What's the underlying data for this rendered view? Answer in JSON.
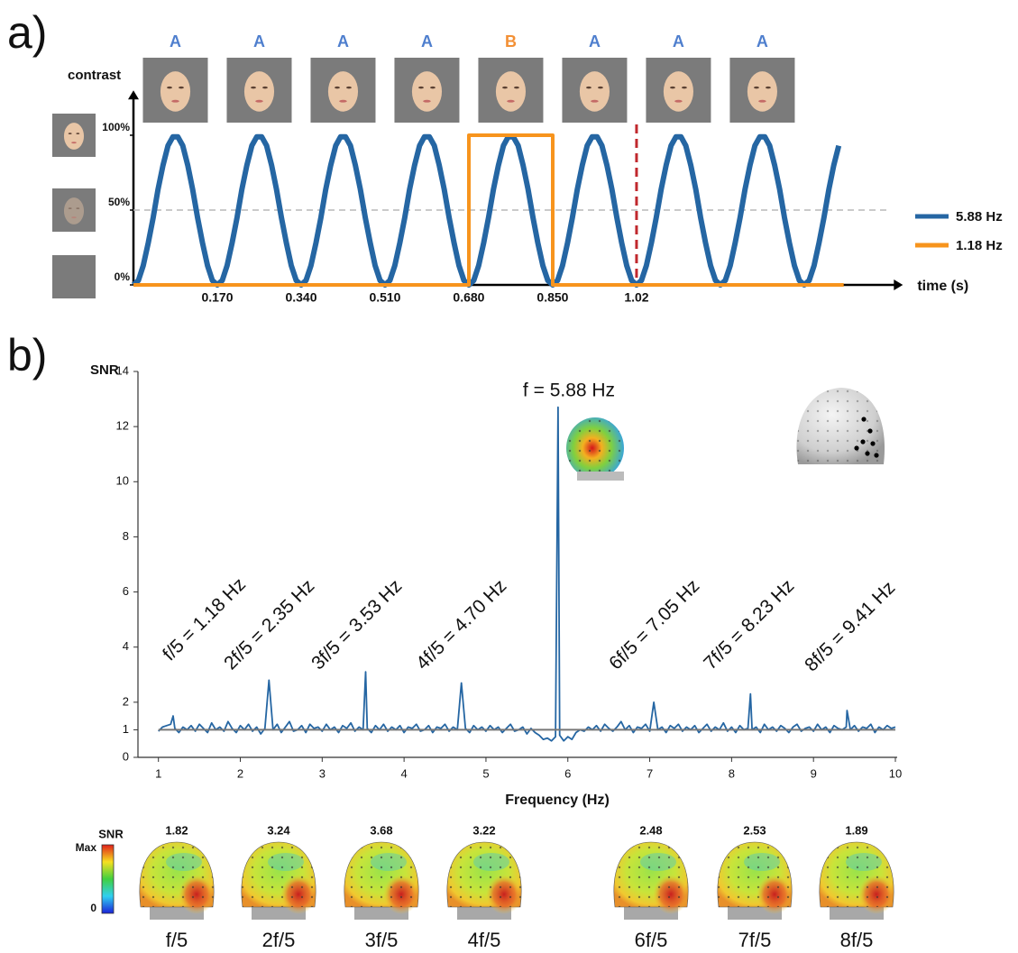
{
  "panel_labels": [
    "a)",
    "b)"
  ],
  "chart_data": [
    {
      "type": "line",
      "ylabel": "contrast",
      "xlabel": "time (s)",
      "stimuli": [
        "A",
        "A",
        "A",
        "A",
        "B",
        "A",
        "A",
        "A"
      ],
      "stimulus_colors": [
        "#4f7fce",
        "#4f7fce",
        "#4f7fce",
        "#4f7fce",
        "#f39035",
        "#4f7fce",
        "#4f7fce",
        "#4f7fce"
      ],
      "xlim": [
        0,
        1.56
      ],
      "ylim": [
        0,
        130
      ],
      "xticks": [
        {
          "value": 0.17,
          "label": "0.170"
        },
        {
          "value": 0.34,
          "label": "0.340"
        },
        {
          "value": 0.51,
          "label": "0.510"
        },
        {
          "value": 0.68,
          "label": "0.680"
        },
        {
          "value": 0.85,
          "label": "0.850"
        },
        1.02
      ],
      "yticks": [
        {
          "value": 0,
          "label": "0%"
        },
        {
          "value": 50,
          "label": "50%"
        },
        {
          "value": 100,
          "label": "100%"
        }
      ],
      "hline": 50,
      "vline": 1.02,
      "vline_color": "#c0282d",
      "legend": "right",
      "series": [
        {
          "name": "5.88 Hz",
          "color": "#2566a3",
          "x": [
            0,
            0.01,
            0.02,
            0.03,
            0.04,
            0.05,
            0.06,
            0.07,
            0.08,
            0.09,
            0.1,
            0.11,
            0.12,
            0.13,
            0.14,
            0.15,
            0.16,
            0.17,
            0.18,
            0.19,
            0.2,
            0.21,
            0.22,
            0.23,
            0.24,
            0.25,
            0.26,
            0.27,
            0.28,
            0.29,
            0.3,
            0.31,
            0.32,
            0.33,
            0.34,
            0.35,
            0.36,
            0.37,
            0.38,
            0.39,
            0.4,
            0.41,
            0.42,
            0.43,
            0.44,
            0.45,
            0.46,
            0.47,
            0.48,
            0.49,
            0.5,
            0.51,
            0.52,
            0.53,
            0.54,
            0.55,
            0.56,
            0.57,
            0.58,
            0.59,
            0.6,
            0.61,
            0.62,
            0.63,
            0.64,
            0.65,
            0.66,
            0.67,
            0.68,
            0.69,
            0.7,
            0.71,
            0.72,
            0.73,
            0.74,
            0.75,
            0.76,
            0.77,
            0.78,
            0.79,
            0.8,
            0.81,
            0.82,
            0.83,
            0.84,
            0.85,
            0.86,
            0.87,
            0.88,
            0.89,
            0.9,
            0.91,
            0.92,
            0.93,
            0.94,
            0.95,
            0.96,
            0.97,
            0.98,
            0.99,
            1,
            1.01,
            1.02,
            1.03,
            1.04,
            1.05,
            1.06,
            1.07,
            1.08,
            1.09,
            1.1,
            1.11,
            1.12,
            1.13,
            1.14,
            1.15,
            1.16,
            1.17,
            1.18,
            1.19,
            1.2,
            1.21,
            1.22,
            1.23,
            1.24,
            1.25,
            1.26,
            1.27,
            1.28,
            1.29,
            1.3,
            1.31,
            1.32,
            1.33,
            1.34,
            1.35,
            1.36,
            1.37,
            1.38,
            1.39,
            1.4,
            1.41,
            1.42,
            1.43
          ],
          "values": [
            0,
            3,
            13,
            28,
            45,
            64,
            80,
            93,
            99,
            99,
            93,
            80,
            64,
            45,
            28,
            13,
            3,
            0,
            3,
            13,
            28,
            45,
            64,
            80,
            93,
            99,
            99,
            93,
            80,
            64,
            45,
            28,
            13,
            3,
            0,
            3,
            13,
            28,
            45,
            64,
            80,
            93,
            99,
            99,
            93,
            80,
            64,
            45,
            28,
            13,
            3,
            0,
            3,
            13,
            28,
            45,
            64,
            80,
            93,
            99,
            99,
            93,
            80,
            64,
            45,
            28,
            13,
            3,
            0,
            3,
            13,
            28,
            45,
            64,
            80,
            93,
            99,
            99,
            93,
            80,
            64,
            45,
            28,
            13,
            3,
            0,
            3,
            13,
            28,
            45,
            64,
            80,
            93,
            99,
            99,
            93,
            80,
            64,
            45,
            28,
            13,
            3,
            0,
            3,
            13,
            28,
            45,
            64,
            80,
            93,
            99,
            99,
            93,
            80,
            64,
            45,
            28,
            13,
            3,
            0,
            3,
            13,
            28,
            45,
            64,
            80,
            93,
            99,
            99,
            93,
            80,
            64,
            45,
            28,
            13,
            3,
            0,
            3,
            13,
            28,
            45,
            64,
            80,
            93
          ]
        },
        {
          "name": "1.18 Hz",
          "color": "#f7941d",
          "x": [
            0,
            0.68,
            0.68,
            0.85,
            0.85,
            1.44
          ],
          "values": [
            0,
            0,
            100,
            100,
            0,
            0
          ]
        }
      ]
    },
    {
      "type": "line",
      "ylabel": "SNR",
      "xlabel": "Frequency (Hz)",
      "xlim": [
        0.75,
        10
      ],
      "ylim": [
        0,
        14
      ],
      "xticks": [
        1,
        2,
        3,
        4,
        5,
        6,
        7,
        8,
        9,
        10
      ],
      "yticks": [
        0,
        1,
        2,
        4,
        6,
        8,
        10,
        12,
        14
      ],
      "hline": 1,
      "hline_color": "#777777",
      "peak_label": "f = 5.88 Hz",
      "harmonic_labels": [
        "f/5 = 1.18 Hz",
        "2f/5 = 2.35 Hz",
        "3f/5 = 3.53 Hz",
        "4f/5 = 4.70 Hz",
        "6f/5 = 7.05 Hz",
        "7f/5 = 8.23 Hz",
        "8f/5 = 9.41 Hz"
      ],
      "series": [
        {
          "color": "#2566a3",
          "x": [
            1,
            1.05,
            1.1,
            1.15,
            1.18,
            1.2,
            1.25,
            1.3,
            1.35,
            1.4,
            1.45,
            1.5,
            1.55,
            1.6,
            1.65,
            1.7,
            1.75,
            1.8,
            1.85,
            1.9,
            1.95,
            2,
            2.05,
            2.1,
            2.15,
            2.2,
            2.25,
            2.3,
            2.35,
            2.4,
            2.45,
            2.5,
            2.55,
            2.6,
            2.65,
            2.7,
            2.75,
            2.8,
            2.85,
            2.9,
            2.95,
            3,
            3.05,
            3.1,
            3.15,
            3.2,
            3.25,
            3.3,
            3.35,
            3.4,
            3.45,
            3.5,
            3.53,
            3.55,
            3.6,
            3.65,
            3.7,
            3.75,
            3.8,
            3.85,
            3.9,
            3.95,
            4,
            4.05,
            4.1,
            4.15,
            4.2,
            4.25,
            4.3,
            4.35,
            4.4,
            4.45,
            4.5,
            4.55,
            4.6,
            4.65,
            4.7,
            4.75,
            4.8,
            4.85,
            4.9,
            4.95,
            5,
            5.05,
            5.1,
            5.15,
            5.2,
            5.25,
            5.3,
            5.35,
            5.4,
            5.45,
            5.5,
            5.55,
            5.6,
            5.65,
            5.7,
            5.75,
            5.8,
            5.85,
            5.88,
            5.9,
            5.95,
            6,
            6.05,
            6.1,
            6.15,
            6.2,
            6.25,
            6.3,
            6.35,
            6.4,
            6.45,
            6.5,
            6.55,
            6.6,
            6.65,
            6.7,
            6.75,
            6.8,
            6.85,
            6.9,
            6.95,
            7,
            7.05,
            7.1,
            7.15,
            7.2,
            7.25,
            7.3,
            7.35,
            7.4,
            7.45,
            7.5,
            7.55,
            7.6,
            7.65,
            7.7,
            7.75,
            7.8,
            7.85,
            7.9,
            7.95,
            8,
            8.05,
            8.1,
            8.15,
            8.2,
            8.23,
            8.25,
            8.3,
            8.35,
            8.4,
            8.45,
            8.5,
            8.55,
            8.6,
            8.65,
            8.7,
            8.75,
            8.8,
            8.85,
            8.9,
            8.95,
            9,
            9.05,
            9.1,
            9.15,
            9.2,
            9.25,
            9.3,
            9.35,
            9.4,
            9.41,
            9.45,
            9.5,
            9.55,
            9.6,
            9.65,
            9.7,
            9.75,
            9.8,
            9.85,
            9.9,
            9.95,
            10
          ],
          "values": [
            0.95,
            1.1,
            1.15,
            1.2,
            1.5,
            1.05,
            0.9,
            1.1,
            1.0,
            1.15,
            0.95,
            1.2,
            1.05,
            0.9,
            1.25,
            1.0,
            1.1,
            0.95,
            1.3,
            1.05,
            0.9,
            1.15,
            1.0,
            1.2,
            0.95,
            1.1,
            0.85,
            1.05,
            2.8,
            1.0,
            1.2,
            0.9,
            1.1,
            1.3,
            0.95,
            1.0,
            1.15,
            0.9,
            1.2,
            1.05,
            1.1,
            0.95,
            1.2,
            1.0,
            1.1,
            0.9,
            1.15,
            1.05,
            1.25,
            0.95,
            1.1,
            1.0,
            3.1,
            1.05,
            0.9,
            1.15,
            1.0,
            1.2,
            0.95,
            1.1,
            1.0,
            1.15,
            0.9,
            1.1,
            1.05,
            1.2,
            0.95,
            1.0,
            1.15,
            0.9,
            1.1,
            1.05,
            1.2,
            0.95,
            1.1,
            1.0,
            2.7,
            1.05,
            0.9,
            1.15,
            1.0,
            1.1,
            0.95,
            1.15,
            1.0,
            1.1,
            0.9,
            1.05,
            1.2,
            0.95,
            1.0,
            1.1,
            0.85,
            1.05,
            0.9,
            0.8,
            0.65,
            0.7,
            0.6,
            0.75,
            12.7,
            0.8,
            0.6,
            0.75,
            0.65,
            0.9,
            1.0,
            0.95,
            1.1,
            1.0,
            1.15,
            0.95,
            1.2,
            1.05,
            0.95,
            1.1,
            1.3,
            1.0,
            1.15,
            0.9,
            1.1,
            1.05,
            1.2,
            0.95,
            2.0,
            1.0,
            1.1,
            0.9,
            1.15,
            1.05,
            1.2,
            0.95,
            1.1,
            1.0,
            1.15,
            0.9,
            1.05,
            1.2,
            0.95,
            1.1,
            1.0,
            1.25,
            0.95,
            1.1,
            0.9,
            1.15,
            1.0,
            1.05,
            2.3,
            1.0,
            1.1,
            0.9,
            1.2,
            1.0,
            1.1,
            0.95,
            1.15,
            1.05,
            0.9,
            1.1,
            1.2,
            0.95,
            1.05,
            1.1,
            0.95,
            1.2,
            1.0,
            1.1,
            0.9,
            1.15,
            1.05,
            1.0,
            1.1,
            1.7,
            1.0,
            1.15,
            0.95,
            1.1,
            1.05,
            1.2,
            0.9,
            1.1,
            1.0,
            1.15,
            1.05,
            1.1
          ]
        }
      ]
    }
  ],
  "topomaps": {
    "colorbar_title": "SNR",
    "colorbar_max": "Max",
    "colorbar_min": "0",
    "maps": [
      {
        "label": "f/5",
        "value": 1.82
      },
      {
        "label": "2f/5",
        "value": 3.24
      },
      {
        "label": "3f/5",
        "value": 3.68
      },
      {
        "label": "4f/5",
        "value": 3.22
      },
      {
        "label": "6f/5",
        "value": 2.48
      },
      {
        "label": "7f/5",
        "value": 2.53
      },
      {
        "label": "8f/5",
        "value": 1.89
      }
    ]
  }
}
